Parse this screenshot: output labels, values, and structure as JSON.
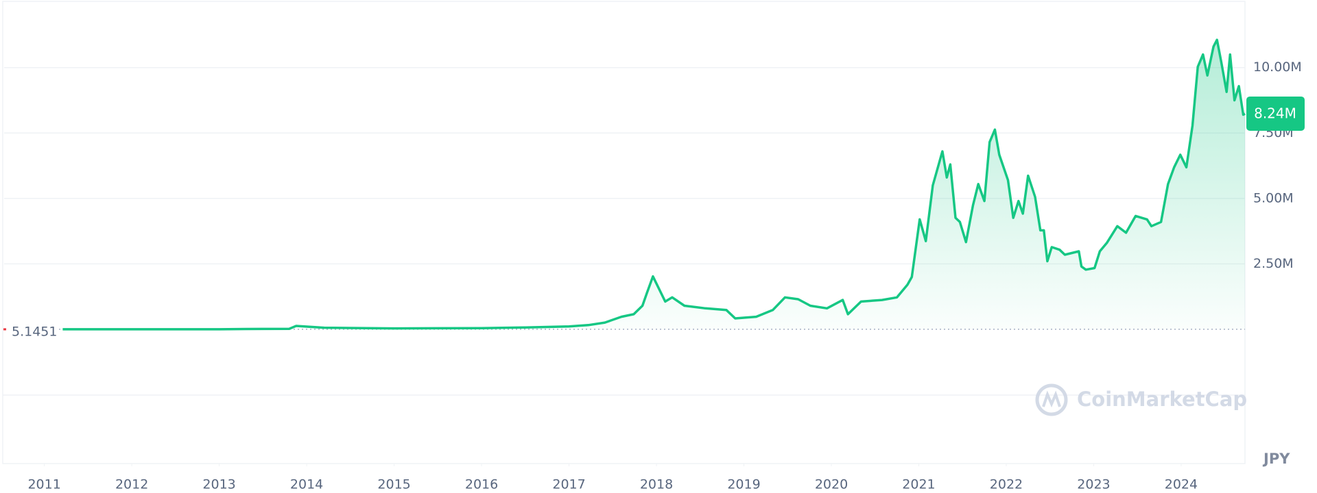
{
  "chart_data": {
    "type": "line",
    "x": [
      2011.21,
      2012.0,
      2013.0,
      2013.3,
      2013.8,
      2013.88,
      2014.2,
      2015.0,
      2016.0,
      2016.5,
      2017.0,
      2017.22,
      2017.41,
      2017.6,
      2017.74,
      2017.84,
      2017.89,
      2017.96,
      2018.03,
      2018.1,
      2018.18,
      2018.32,
      2018.56,
      2018.8,
      2018.9,
      2019.14,
      2019.33,
      2019.47,
      2019.62,
      2019.76,
      2019.95,
      2020.13,
      2020.19,
      2020.34,
      2020.58,
      2020.75,
      2020.87,
      2020.92,
      2021.01,
      2021.08,
      2021.16,
      2021.27,
      2021.32,
      2021.36,
      2021.42,
      2021.47,
      2021.54,
      2021.62,
      2021.68,
      2021.75,
      2021.81,
      2021.87,
      2021.92,
      2022.02,
      2022.08,
      2022.14,
      2022.19,
      2022.25,
      2022.33,
      2022.39,
      2022.43,
      2022.47,
      2022.52,
      2022.61,
      2022.67,
      2022.83,
      2022.86,
      2022.91,
      2023.01,
      2023.07,
      2023.15,
      2023.27,
      2023.37,
      2023.48,
      2023.61,
      2023.66,
      2023.77,
      2023.85,
      2023.92,
      2023.99,
      2024.06,
      2024.13,
      2024.19,
      2024.25,
      2024.3,
      2024.37,
      2024.41,
      2024.46,
      2024.52,
      2024.56,
      2024.61,
      2024.66,
      2024.71,
      2024.73
    ],
    "values": [
      5,
      400,
      1300,
      10000,
      20000,
      128000,
      60000,
      35000,
      45000,
      70000,
      110000,
      160000,
      256000,
      480000,
      577000,
      900000,
      1380000,
      2020000,
      1540000,
      1060000,
      1220000,
      900000,
      800000,
      737000,
      417000,
      480000,
      737000,
      1220000,
      1150000,
      900000,
      800000,
      1120000,
      577000,
      1060000,
      1120000,
      1220000,
      1700000,
      2000000,
      4200000,
      3370000,
      5500000,
      6800000,
      5800000,
      6300000,
      4260000,
      4100000,
      3330000,
      4740000,
      5550000,
      4900000,
      7150000,
      7630000,
      6670000,
      5700000,
      4260000,
      4900000,
      4420000,
      5870000,
      5060000,
      3780000,
      3780000,
      2600000,
      3140000,
      3040000,
      2850000,
      2980000,
      2400000,
      2280000,
      2340000,
      2980000,
      3300000,
      3940000,
      3690000,
      4330000,
      4200000,
      3940000,
      4100000,
      5550000,
      6190000,
      6670000,
      6190000,
      7790000,
      10030000,
      10500000,
      9700000,
      10800000,
      11060000,
      10190000,
      9070000,
      10500000,
      8750000,
      9290000,
      8200000,
      8240000
    ],
    "color": "#16c784",
    "xlim": [
      2010.54,
      2024.73
    ],
    "ylim": [
      -5130000,
      12530000
    ],
    "xticks": [
      2011,
      2012,
      2013,
      2014,
      2015,
      2016,
      2017,
      2018,
      2019,
      2020,
      2021,
      2022,
      2023,
      2024
    ],
    "yticks": [
      {
        "value": 2500000,
        "label": "2.50M"
      },
      {
        "value": 5000000,
        "label": "5.00M"
      },
      {
        "value": 7500000,
        "label": "7.50M"
      },
      {
        "value": 10000000,
        "label": "10.00M"
      }
    ],
    "grid": true,
    "area": true,
    "baseline": 5.1451,
    "last_price": {
      "value": 8240000,
      "label": "8.24M"
    },
    "currency": "JPY",
    "watermark": "CoinMarketCap"
  }
}
